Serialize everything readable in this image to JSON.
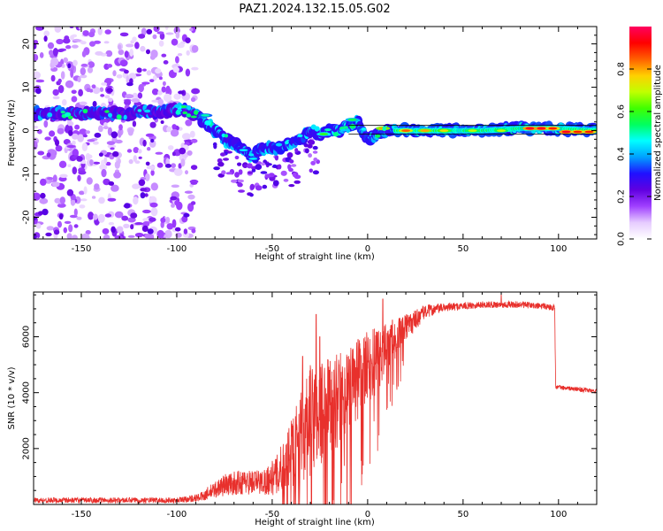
{
  "figure": {
    "title": "PAZ1.2024.132.15.05.G02"
  },
  "chart_data": [
    {
      "type": "heatmap",
      "xlabel": "Height of straight line (km)",
      "ylabel": "Frequency (Hz)",
      "xlim": [
        -175,
        120
      ],
      "ylim": [
        -25,
        24
      ],
      "x_ticks": [
        -150,
        -100,
        -50,
        0,
        50,
        100
      ],
      "y_ticks": [
        -20,
        -10,
        0,
        10,
        20
      ],
      "colorbar": {
        "label": "Normalized spectral amplitude",
        "ticks": [
          0.0,
          0.2,
          0.4,
          0.6,
          0.8
        ],
        "range": [
          0,
          1
        ],
        "colors": [
          "#ffffff",
          "#e6ccff",
          "#a040ff",
          "#6000e0",
          "#2010ff",
          "#00a0ff",
          "#00ffff",
          "#00ff60",
          "#40ff00",
          "#c0ff00",
          "#ffd000",
          "#ff6000",
          "#ff0000",
          "#ff0060"
        ]
      },
      "ridge_centerline": [
        [
          -175,
          4
        ],
        [
          -150,
          4
        ],
        [
          -125,
          4
        ],
        [
          -105,
          4.5
        ],
        [
          -97,
          5
        ],
        [
          -90,
          3.5
        ],
        [
          -85,
          2
        ],
        [
          -80,
          0
        ],
        [
          -75,
          -2
        ],
        [
          -70,
          -3
        ],
        [
          -65,
          -4.5
        ],
        [
          -60,
          -6
        ],
        [
          -55,
          -4
        ],
        [
          -50,
          -4
        ],
        [
          -45,
          -4
        ],
        [
          -40,
          -3
        ],
        [
          -35,
          -2
        ],
        [
          -30,
          0
        ],
        [
          -25,
          -1
        ],
        [
          -20,
          0
        ],
        [
          -15,
          0
        ],
        [
          -10,
          1
        ],
        [
          -5,
          2
        ],
        [
          0,
          -2
        ],
        [
          5,
          -1
        ],
        [
          10,
          0
        ],
        [
          20,
          0
        ],
        [
          40,
          0
        ],
        [
          60,
          0
        ],
        [
          80,
          0.5
        ],
        [
          100,
          0.5
        ],
        [
          120,
          0
        ]
      ],
      "ridge_peaks": [
        [
          85,
          0.5,
          0.95
        ],
        [
          91,
          0.5,
          0.95
        ],
        [
          97,
          0.5,
          0.9
        ],
        [
          104,
          -0.3,
          0.95
        ],
        [
          110,
          -0.3,
          0.9
        ],
        [
          116,
          -0.3,
          0.9
        ],
        [
          20,
          0,
          0.85
        ],
        [
          30,
          0,
          0.8
        ],
        [
          40,
          0,
          0.75
        ],
        [
          55,
          0,
          0.7
        ],
        [
          70,
          0,
          0.7
        ],
        [
          8,
          0.5,
          0.8
        ],
        [
          -23,
          -0.8,
          0.6
        ],
        [
          -8,
          2.5,
          0.55
        ],
        [
          -97,
          5.5,
          0.55
        ],
        [
          -85,
          3.5,
          0.5
        ],
        [
          -65,
          -4.5,
          0.45
        ],
        [
          -60,
          -6.5,
          0.45
        ]
      ]
    },
    {
      "type": "line",
      "xlabel": "Height of straight line (km)",
      "ylabel": "SNR (10 * v/v)",
      "xlim": [
        -175,
        120
      ],
      "ylim": [
        0,
        7600
      ],
      "x_ticks": [
        -150,
        -100,
        -50,
        0,
        50,
        100
      ],
      "y_ticks": [
        2000,
        4000,
        6000
      ],
      "color": "#e8302c",
      "envelope": [
        [
          -175,
          150,
          100
        ],
        [
          -100,
          150,
          100
        ],
        [
          -88,
          250,
          150
        ],
        [
          -75,
          700,
          400
        ],
        [
          -65,
          800,
          450
        ],
        [
          -55,
          800,
          450
        ],
        [
          -48,
          1000,
          700
        ],
        [
          -40,
          1800,
          1200
        ],
        [
          -30,
          3000,
          2000
        ],
        [
          -20,
          3500,
          1800
        ],
        [
          -10,
          4000,
          1600
        ],
        [
          0,
          4800,
          1400
        ],
        [
          10,
          5600,
          900
        ],
        [
          20,
          6300,
          500
        ],
        [
          30,
          6900,
          250
        ],
        [
          40,
          7050,
          150
        ],
        [
          60,
          7150,
          120
        ],
        [
          80,
          7150,
          120
        ],
        [
          98,
          7050,
          120
        ],
        [
          98.5,
          4200,
          80
        ],
        [
          120,
          4050,
          80
        ]
      ],
      "spikes": [
        [
          -27,
          6800
        ],
        [
          -25,
          6000
        ],
        [
          -34,
          5300
        ],
        [
          -15,
          5000
        ],
        [
          -5,
          5900
        ],
        [
          8,
          7350
        ],
        [
          -20,
          4800
        ],
        [
          -10,
          4700
        ],
        [
          2,
          5200
        ],
        [
          13,
          6600
        ],
        [
          70,
          7500
        ]
      ]
    }
  ]
}
